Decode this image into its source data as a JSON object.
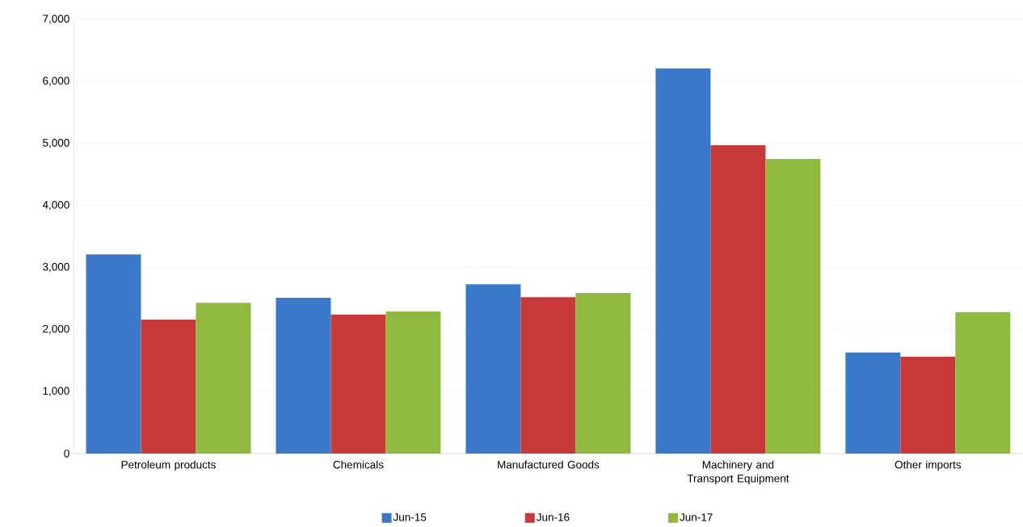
{
  "chart_data": {
    "type": "bar",
    "categories": [
      "Petroleum products",
      "Chemicals",
      "Manufactured Goods",
      "Machinery and Transport Equipment",
      "Other imports"
    ],
    "series": [
      {
        "name": "Jun-15",
        "color": "#3a78c9",
        "values": [
          3210,
          2510,
          2730,
          6210,
          1630
        ]
      },
      {
        "name": "Jun-16",
        "color": "#c8393a",
        "values": [
          2160,
          2240,
          2520,
          4970,
          1560
        ]
      },
      {
        "name": "Jun-17",
        "color": "#8fba3f",
        "values": [
          2430,
          2290,
          2590,
          4750,
          2280
        ]
      }
    ],
    "ylim": [
      0,
      7000
    ],
    "yticks": [
      {
        "value": 0,
        "label": "0"
      },
      {
        "value": 1000,
        "label": "1,000"
      },
      {
        "value": 2000,
        "label": "2,000"
      },
      {
        "value": 3000,
        "label": "3,000"
      },
      {
        "value": 4000,
        "label": "4,000"
      },
      {
        "value": 5000,
        "label": "5,000"
      },
      {
        "value": 6000,
        "label": "6,000"
      },
      {
        "value": 7000,
        "label": "7,000"
      }
    ],
    "grid": "y",
    "legend": "bottom"
  }
}
